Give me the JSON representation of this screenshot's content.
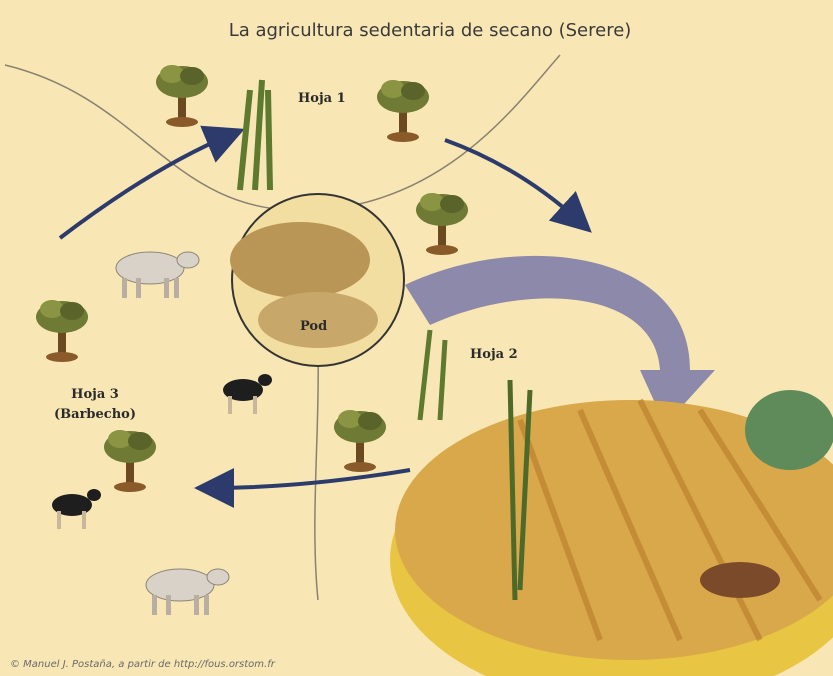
{
  "title": "La agricultura sedentaria de secano (Serere)",
  "labels": [
    "Hoja 1",
    "Hoja 2",
    "Hoja 3",
    "(Barbecho)",
    "Pod"
  ],
  "credit": "© Manuel J. Postaña, a partir de http://fous.orstom.fr"
}
